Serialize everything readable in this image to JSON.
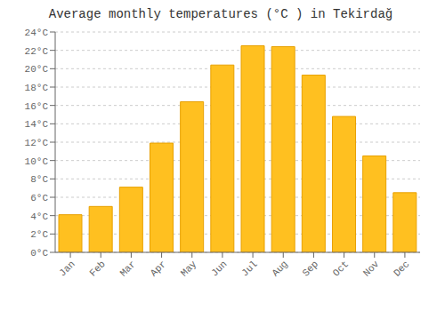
{
  "chart_data": {
    "type": "bar",
    "title": "Average monthly temperatures (°C ) in Tekirdağ",
    "categories": [
      "Jan",
      "Feb",
      "Mar",
      "Apr",
      "May",
      "Jun",
      "Jul",
      "Aug",
      "Sep",
      "Oct",
      "Nov",
      "Dec"
    ],
    "values": [
      4.1,
      5.0,
      7.1,
      11.9,
      16.4,
      20.4,
      22.5,
      22.4,
      19.3,
      14.8,
      10.5,
      6.5
    ],
    "color": "#FFC020",
    "ylim": [
      0,
      24
    ],
    "yticks": [
      {
        "value": 0,
        "label": "0°C"
      },
      {
        "value": 2,
        "label": "2°C"
      },
      {
        "value": 4,
        "label": "4°C"
      },
      {
        "value": 6,
        "label": "6°C"
      },
      {
        "value": 8,
        "label": "8°C"
      },
      {
        "value": 10,
        "label": "10°C"
      },
      {
        "value": 12,
        "label": "12°C"
      },
      {
        "value": 14,
        "label": "14°C"
      },
      {
        "value": 16,
        "label": "16°C"
      },
      {
        "value": 18,
        "label": "18°C"
      },
      {
        "value": 20,
        "label": "20°C"
      },
      {
        "value": 22,
        "label": "22°C"
      },
      {
        "value": 24,
        "label": "24°C"
      }
    ],
    "grid": true
  }
}
